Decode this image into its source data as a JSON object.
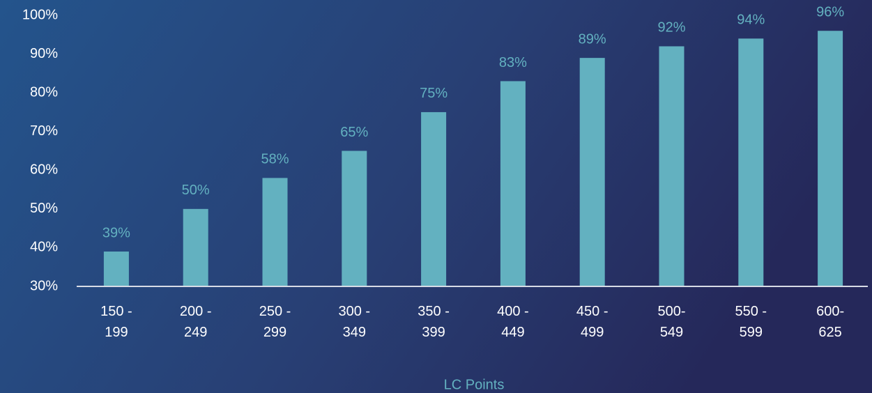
{
  "chart_data": {
    "type": "bar",
    "x_label": "LC Points",
    "categories": [
      "150 - 199",
      "200 - 249",
      "250 - 299",
      "300 - 349",
      "350 - 399",
      "400 - 449",
      "450 - 499",
      "500-549",
      "550 - 599",
      "600-625"
    ],
    "values": [
      39,
      50,
      58,
      65,
      75,
      83,
      89,
      92,
      94,
      96
    ],
    "value_labels": [
      "39%",
      "50%",
      "58%",
      "65%",
      "75%",
      "83%",
      "89%",
      "92%",
      "94%",
      "96%"
    ],
    "color": "#63b1c0",
    "ylim": [
      30,
      100
    ],
    "yticks": [
      {
        "value": 30,
        "label": "30%"
      },
      {
        "value": 40,
        "label": "40%"
      },
      {
        "value": 50,
        "label": "50%"
      },
      {
        "value": 60,
        "label": "60%"
      },
      {
        "value": 70,
        "label": "70%"
      },
      {
        "value": 80,
        "label": "80%"
      },
      {
        "value": 90,
        "label": "90%"
      },
      {
        "value": 100,
        "label": "100%"
      }
    ],
    "grid": false
  }
}
